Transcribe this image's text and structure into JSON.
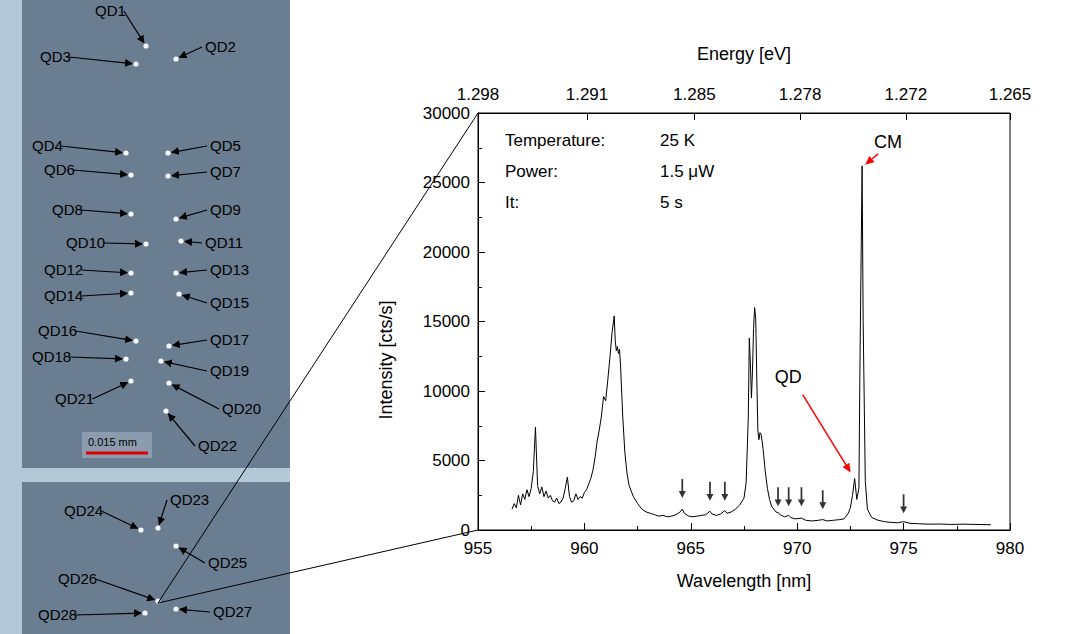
{
  "chart_data": {
    "type": "line",
    "xlabel": "Wavelength [nm]",
    "ylabel": "Intensity [cts/s]",
    "x2label": "Energy [eV]",
    "color": "#000000",
    "grid": false,
    "xlim": [
      955,
      980
    ],
    "xticks": [
      955,
      960,
      965,
      970,
      975,
      980
    ],
    "ylim": [
      0,
      30000
    ],
    "yticks": [
      0,
      5000,
      10000,
      15000,
      20000,
      25000,
      30000
    ],
    "x2lim": [
      1.2983,
      1.2651
    ],
    "x2ticks": [
      {
        "value": 1.2983,
        "label": "1.298"
      },
      {
        "value": 1.2915,
        "label": "1.291"
      },
      {
        "value": 1.2848,
        "label": "1.285"
      },
      {
        "value": 1.2782,
        "label": "1.278"
      },
      {
        "value": 1.2716,
        "label": "1.272"
      },
      {
        "value": 1.2651,
        "label": "1.265"
      }
    ],
    "x": [
      956.6,
      956.7,
      956.8,
      956.9,
      957.0,
      957.1,
      957.2,
      957.3,
      957.4,
      957.5,
      957.6,
      957.7,
      957.8,
      957.9,
      958.0,
      958.1,
      958.2,
      958.3,
      958.4,
      958.5,
      958.6,
      958.7,
      958.8,
      958.9,
      959.0,
      959.1,
      959.2,
      959.3,
      959.4,
      959.5,
      959.6,
      959.7,
      959.8,
      959.9,
      960.0,
      960.1,
      960.2,
      960.3,
      960.4,
      960.5,
      960.6,
      960.7,
      960.8,
      960.9,
      961.0,
      961.1,
      961.2,
      961.3,
      961.4,
      961.45,
      961.5,
      961.55,
      961.6,
      961.65,
      961.7,
      961.8,
      961.9,
      962.0,
      962.1,
      962.3,
      962.5,
      962.7,
      962.9,
      963.1,
      963.3,
      963.5,
      963.7,
      963.9,
      964.1,
      964.3,
      964.5,
      964.6,
      964.7,
      964.9,
      965.1,
      965.3,
      965.5,
      965.7,
      965.9,
      966.0,
      966.2,
      966.4,
      966.6,
      966.7,
      966.9,
      967.1,
      967.3,
      967.5,
      967.6,
      967.7,
      967.75,
      967.8,
      967.85,
      967.9,
      967.95,
      968.0,
      968.05,
      968.1,
      968.15,
      968.2,
      968.25,
      968.3,
      968.35,
      968.4,
      968.5,
      968.6,
      968.7,
      968.8,
      969.0,
      969.1,
      969.2,
      969.4,
      969.6,
      969.7,
      969.9,
      970.2,
      970.4,
      970.7,
      971.0,
      971.2,
      971.4,
      971.7,
      972.0,
      972.2,
      972.4,
      972.5,
      972.6,
      972.7,
      972.8,
      972.9,
      972.95,
      973.05,
      973.1,
      973.2,
      973.3,
      973.5,
      973.8,
      974.1,
      974.4,
      974.7,
      975.0,
      975.3,
      975.7,
      976.2,
      976.7,
      977.2,
      977.8,
      978.4,
      979.1
    ],
    "values": [
      1500,
      1900,
      1600,
      2500,
      1800,
      2600,
      2200,
      2900,
      2400,
      3000,
      4200,
      7400,
      3200,
      2600,
      3100,
      2400,
      2800,
      2300,
      2500,
      2100,
      2000,
      2300,
      1900,
      2000,
      2300,
      3000,
      3800,
      2400,
      2000,
      2100,
      2600,
      2200,
      2400,
      2300,
      2700,
      2900,
      3300,
      3700,
      4300,
      5200,
      6400,
      7200,
      8200,
      9600,
      9300,
      10800,
      12400,
      14200,
      15400,
      13600,
      12900,
      13200,
      12700,
      13000,
      11800,
      8200,
      5600,
      4100,
      3200,
      2400,
      1900,
      1500,
      1300,
      1200,
      1100,
      1000,
      1050,
      950,
      1000,
      1100,
      1300,
      1500,
      1200,
      1000,
      950,
      1000,
      1050,
      1100,
      1350,
      1150,
      1050,
      1150,
      1400,
      1200,
      1300,
      1500,
      1800,
      2300,
      3400,
      8000,
      13800,
      12000,
      9500,
      11500,
      14500,
      16000,
      15200,
      11000,
      7200,
      6500,
      7000,
      6900,
      6400,
      5800,
      4200,
      3000,
      2200,
      1700,
      1300,
      1250,
      1100,
      950,
      1050,
      900,
      800,
      850,
      700,
      650,
      700,
      750,
      650,
      700,
      750,
      800,
      1200,
      1600,
      2500,
      3700,
      2200,
      3000,
      12000,
      26200,
      15000,
      3500,
      1500,
      900,
      700,
      600,
      550,
      520,
      600,
      480,
      450,
      420,
      430,
      400,
      420,
      400,
      380
    ],
    "peak_arrows": {
      "x": [
        964.6,
        965.9,
        966.6,
        969.1,
        969.6,
        970.2,
        971.2,
        975.0
      ],
      "values": [
        2300,
        2100,
        2100,
        1700,
        1700,
        1700,
        1500,
        1200
      ],
      "color": "#000000"
    },
    "annotations": [
      {
        "text": "CM",
        "x": 973.05,
        "y": 26200,
        "color": "#ff0000"
      },
      {
        "text": "QD",
        "x": 972.7,
        "y": 3700,
        "color": "#ff0000"
      }
    ],
    "info": [
      {
        "label": "Temperature:",
        "value": "25 K"
      },
      {
        "label": "Power:",
        "value": "1.5 μW"
      },
      {
        "label": "It:",
        "value": "5 s"
      }
    ]
  },
  "image": {
    "labels": [
      "QD1",
      "QD2",
      "QD3",
      "QD4",
      "QD5",
      "QD6",
      "QD7",
      "QD8",
      "QD9",
      "QD10",
      "QD11",
      "QD12",
      "QD13",
      "QD14",
      "QD15",
      "QD16",
      "QD17",
      "QD18",
      "QD19",
      "QD20",
      "QD21",
      "QD22",
      "QD23",
      "QD24",
      "QD25",
      "QD26",
      "QD27",
      "QD28"
    ],
    "scale_bar": "0.015 mm"
  }
}
